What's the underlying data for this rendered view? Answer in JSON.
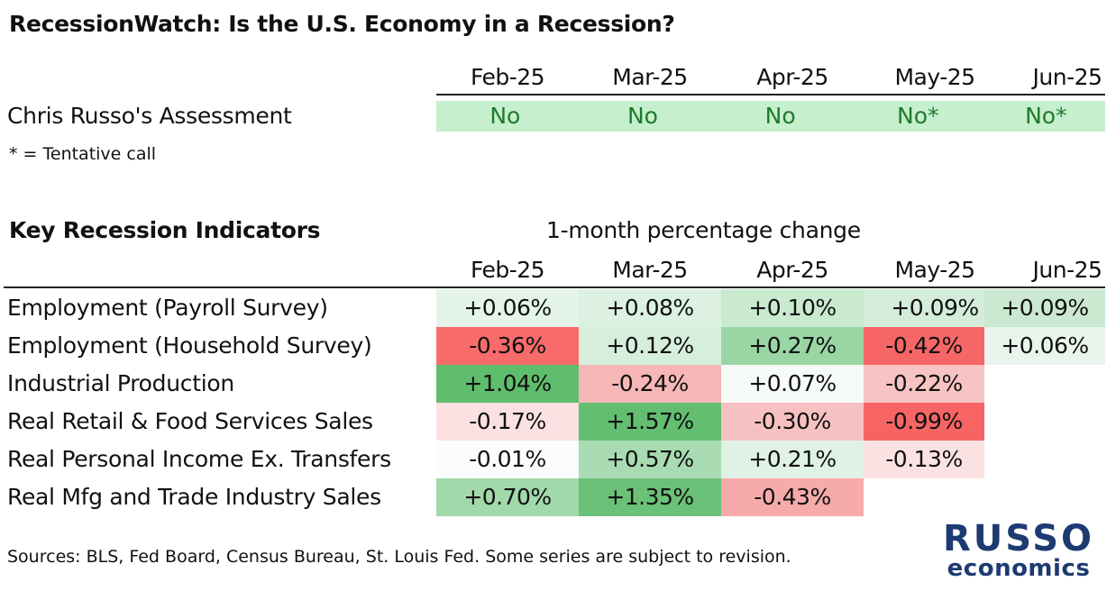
{
  "title": "RecessionWatch: Is the U.S. Economy in a Recession?",
  "months": [
    "Feb-25",
    "Mar-25",
    "Apr-25",
    "May-25",
    "Jun-25"
  ],
  "assessment": {
    "label": "Chris Russo's Assessment",
    "values": [
      "No",
      "No",
      "No",
      "No*",
      "No*"
    ],
    "color": "#c6efce",
    "text_color": "#1e7b2b"
  },
  "note": "* = Tentative call",
  "indicators_title": "Key Recession Indicators",
  "indicators_subtitle": "1-month percentage change",
  "indicators": [
    {
      "label": "Employment (Payroll Survey)",
      "values": [
        "+0.06%",
        "+0.08%",
        "+0.10%",
        "+0.09%",
        "+0.09%"
      ],
      "colors": [
        "#e4f4e9",
        "#dcf1e2",
        "#c9eacf",
        "#d3edda",
        "#cbe9d1"
      ]
    },
    {
      "label": "Employment (Household Survey)",
      "values": [
        "-0.36%",
        "+0.12%",
        "+0.27%",
        "-0.42%",
        "+0.06%"
      ],
      "colors": [
        "#f86b6b",
        "#d6efdc",
        "#9ad6a4",
        "#f76666",
        "#e8f5ec"
      ]
    },
    {
      "label": "Industrial Production",
      "values": [
        "+1.04%",
        "-0.24%",
        "+0.07%",
        "-0.22%",
        ""
      ],
      "colors": [
        "#5fbd6d",
        "#f7b7b7",
        "#f6fbf7",
        "#f8c3c3",
        "#ffffff"
      ]
    },
    {
      "label": "Real Retail & Food Services Sales",
      "values": [
        "-0.17%",
        "+1.57%",
        "-0.30%",
        "-0.99%",
        ""
      ],
      "colors": [
        "#fbe1e1",
        "#63be71",
        "#f7c1c1",
        "#f76464",
        "#ffffff"
      ]
    },
    {
      "label": "Real Personal Income Ex. Transfers",
      "values": [
        "-0.01%",
        "+0.57%",
        "+0.21%",
        "-0.13%",
        ""
      ],
      "colors": [
        "#fbfcfd",
        "#a8dbb1",
        "#e0f2e5",
        "#fbe2e2",
        "#ffffff"
      ]
    },
    {
      "label": "Real Mfg and Trade Industry Sales",
      "values": [
        "+0.70%",
        "+1.35%",
        "-0.43%",
        "",
        ""
      ],
      "colors": [
        "#a2d9ab",
        "#6cc178",
        "#f7aaaa",
        "#ffffff",
        "#ffffff"
      ]
    }
  ],
  "sources": "Sources: BLS, Fed Board, Census Bureau, St. Louis Fed. Some series are subject to revision.",
  "logo": {
    "line1": "RUSSO",
    "line2": "economics",
    "color": "#1d3a72"
  }
}
